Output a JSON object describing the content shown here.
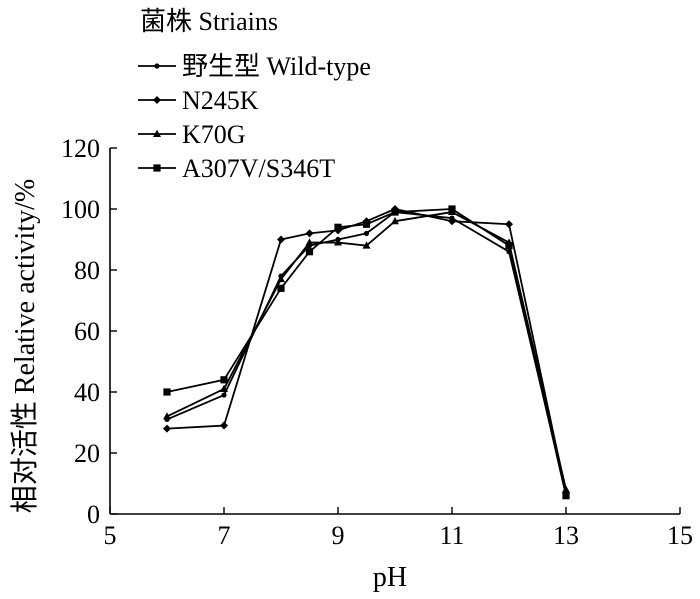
{
  "chart_data": {
    "type": "line",
    "title": "",
    "legend": {
      "title": "菌株  Striains",
      "position": "top-left"
    },
    "xlabel": "pH",
    "ylabel": "相对活性  Relative activity/%",
    "xlim": [
      5,
      15
    ],
    "ylim": [
      0,
      120
    ],
    "xticks": [
      5,
      7,
      9,
      11,
      13,
      15
    ],
    "yticks": [
      0,
      20,
      40,
      60,
      80,
      100,
      120
    ],
    "grid": false,
    "x": [
      6,
      7,
      8,
      8.5,
      9,
      9.5,
      10,
      11,
      12,
      13
    ],
    "series": [
      {
        "name": "野生型 Wild-type",
        "marker": "circle",
        "values": [
          31,
          39,
          78,
          88,
          90,
          92,
          99,
          97,
          86,
          7
        ]
      },
      {
        "name": "N245K",
        "marker": "diamond",
        "values": [
          28,
          29,
          90,
          92,
          93,
          96,
          100,
          96,
          95,
          7
        ]
      },
      {
        "name": "K70G",
        "marker": "triangle",
        "values": [
          32,
          41,
          77,
          89,
          89,
          88,
          96,
          99,
          89,
          8
        ]
      },
      {
        "name": "A307V/S346T",
        "marker": "square",
        "values": [
          40,
          44,
          74,
          86,
          94,
          95,
          99,
          100,
          88,
          6
        ]
      }
    ]
  }
}
